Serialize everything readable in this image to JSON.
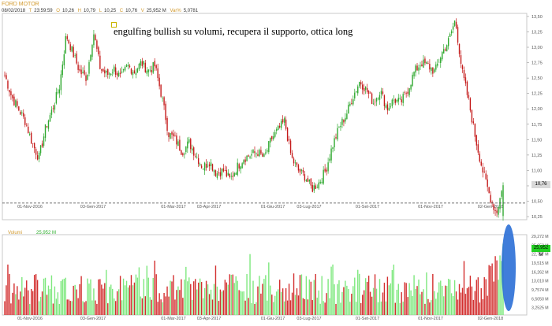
{
  "header": {
    "title": "FORD MOTOR",
    "ohlc": [
      {
        "key": "",
        "value": "08/02/2018"
      },
      {
        "key": "T",
        "value": "23:59:59"
      },
      {
        "key": "O",
        "value": "10,26"
      },
      {
        "key": "H",
        "value": "10,79"
      },
      {
        "key": "L",
        "value": "10,25"
      },
      {
        "key": "C",
        "value": "10,76"
      },
      {
        "key": "V",
        "value": "25,952 M"
      },
      {
        "key": "Var%",
        "value": "5,0781"
      }
    ]
  },
  "annotation": "engulfing bullish su volumi, recupera il supporto, ottica long",
  "volume_panel": {
    "label": "Volumi",
    "value": "25,952 M"
  },
  "last_price_label": "10,76",
  "colors": {
    "up": "#2fa82f",
    "down": "#c41a1a",
    "vol_up": "#7ee87e",
    "vol_down": "#d32f2f",
    "ellipse": "#2b6fd6",
    "support": "#444444"
  },
  "chart_data": [
    {
      "type": "candlestick",
      "title": "FORD MOTOR",
      "x_tick_labels": [
        "01-Nov-2016",
        "03-Gen-2017",
        "01-Mar-2017",
        "03-Apr-2017",
        "01-Giu-2017",
        "03-Lug-2017",
        "01-Set-2017",
        "01-Nov-2017",
        "02-Gen-2018"
      ],
      "y_tick_labels": [
        "10,25",
        "10,50",
        "10,75",
        "11,00",
        "11,25",
        "11,50",
        "11,75",
        "12,00",
        "12,25",
        "12,50",
        "12,75",
        "13,00",
        "13,25",
        "13,50"
      ],
      "ylim": [
        10.2,
        13.55
      ],
      "support_level": 10.47,
      "last_close": 10.76,
      "anchor_closes": [
        12.55,
        12.2,
        12.0,
        11.8,
        11.45,
        11.2,
        11.7,
        12.0,
        12.35,
        13.2,
        12.9,
        12.6,
        12.5,
        13.25,
        12.65,
        12.55,
        12.65,
        12.5,
        12.7,
        12.6,
        12.75,
        12.62,
        12.7,
        12.2,
        11.6,
        11.5,
        11.3,
        11.45,
        11.25,
        11.05,
        11.15,
        10.95,
        11.0,
        10.85,
        11.05,
        11.2,
        11.25,
        11.3,
        11.2,
        11.5,
        11.65,
        11.8,
        11.2,
        11.0,
        10.9,
        10.7,
        10.8,
        11.0,
        11.4,
        11.7,
        11.9,
        12.2,
        12.45,
        12.3,
        12.1,
        12.3,
        12.0,
        12.15,
        12.1,
        12.3,
        12.6,
        12.75,
        12.7,
        12.6,
        12.9,
        13.1,
        13.45,
        12.6,
        12.1,
        11.5,
        11.0,
        10.6,
        10.3,
        10.76
      ]
    },
    {
      "type": "bar",
      "title": "Volumi",
      "y_tick_labels": [
        "29,272 M",
        "25,952 M",
        "22,757 M",
        "19,515 M",
        "16,262 M",
        "13,010 M",
        "9,7574 M",
        "6,5050 M",
        "3,2525 M"
      ],
      "ylim": [
        0,
        29.272
      ],
      "last_value": 25.952
    }
  ]
}
